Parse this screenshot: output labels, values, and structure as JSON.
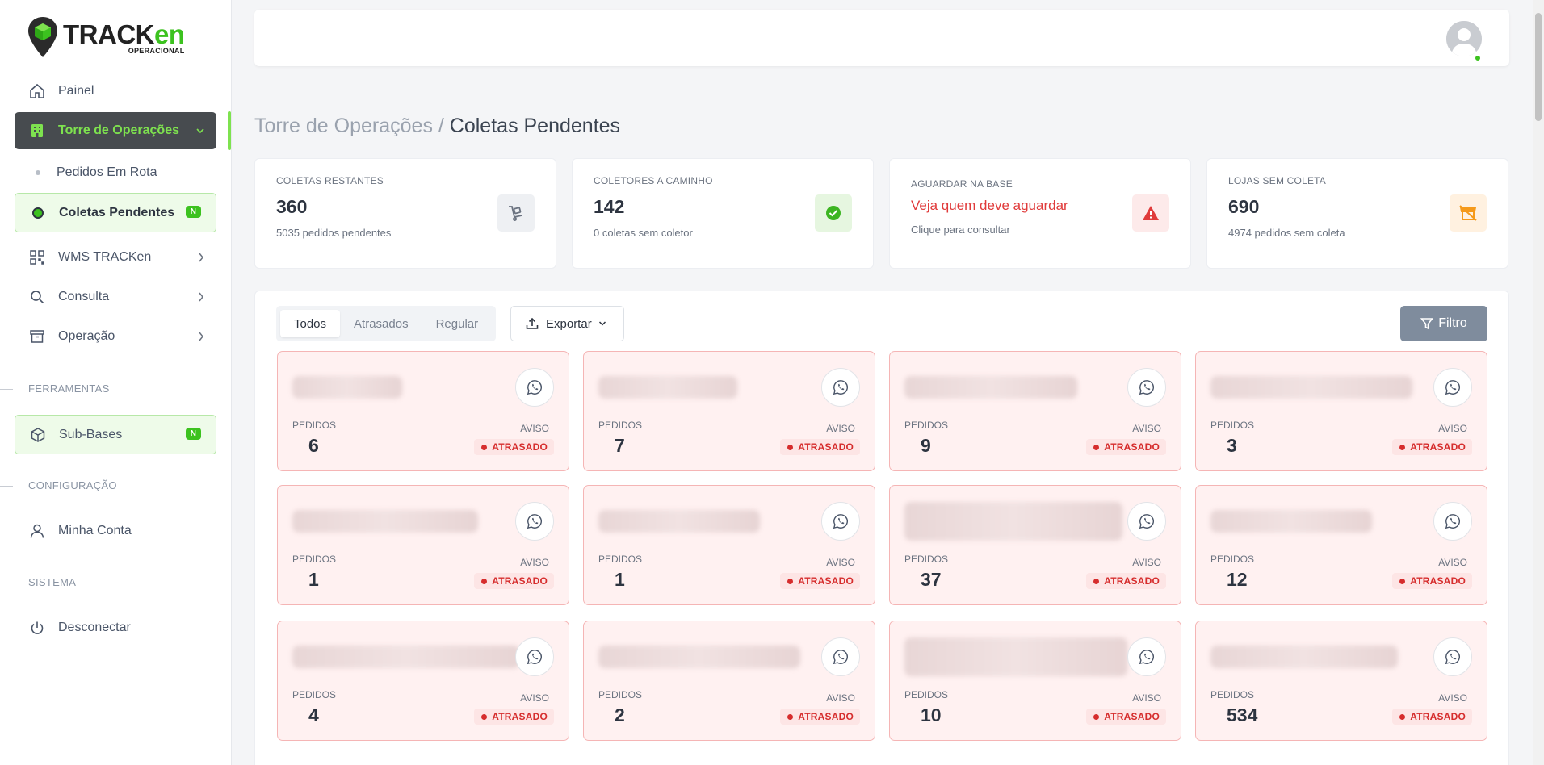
{
  "brand": {
    "name_main": "TRACK",
    "name_accent": "en",
    "sub": "OPERACIONAL",
    "accent_color": "#3cc21f"
  },
  "sidebar": {
    "painel": "Painel",
    "torre": "Torre de Operações",
    "pedidos_rota": "Pedidos Em Rota",
    "coletas": "Coletas Pendentes",
    "coletas_badge": "N",
    "wms": "WMS TRACKen",
    "consulta": "Consulta",
    "operacao": "Operação",
    "section_ferramentas": "FERRAMENTAS",
    "subbases": "Sub-Bases",
    "subbases_badge": "N",
    "section_configuracao": "CONFIGURAÇÃO",
    "minha_conta": "Minha Conta",
    "section_sistema": "SISTEMA",
    "desconectar": "Desconectar"
  },
  "breadcrumb": {
    "parent": "Torre de Operações",
    "separator": " / ",
    "current": "Coletas Pendentes"
  },
  "stats": [
    {
      "label": "COLETAS RESTANTES",
      "value": "360",
      "sub": "5035 pedidos pendentes",
      "icon": "cart-icon"
    },
    {
      "label": "COLETORES A CAMINHO",
      "value": "142",
      "sub": "0 coletas sem coletor",
      "icon": "check-circle-icon"
    },
    {
      "label": "AGUARDAR NA BASE",
      "value": "Veja quem deve aguardar",
      "sub": "Clique para consultar",
      "icon": "warning-icon"
    },
    {
      "label": "LOJAS SEM COLETA",
      "value": "690",
      "sub": "4974 pedidos sem coleta",
      "icon": "store-off-icon"
    }
  ],
  "toolbar": {
    "tabs": [
      "Todos",
      "Atrasados",
      "Regular"
    ],
    "export_label": "Exportar",
    "filter_label": "Filtro"
  },
  "cards": [
    {
      "pedidos_label": "PEDIDOS",
      "pedidos": "6",
      "aviso_label": "AVISO",
      "status": "ATRASADO"
    },
    {
      "pedidos_label": "PEDIDOS",
      "pedidos": "7",
      "aviso_label": "AVISO",
      "status": "ATRASADO"
    },
    {
      "pedidos_label": "PEDIDOS",
      "pedidos": "9",
      "aviso_label": "AVISO",
      "status": "ATRASADO"
    },
    {
      "pedidos_label": "PEDIDOS",
      "pedidos": "3",
      "aviso_label": "AVISO",
      "status": "ATRASADO"
    },
    {
      "pedidos_label": "PEDIDOS",
      "pedidos": "1",
      "aviso_label": "AVISO",
      "status": "ATRASADO"
    },
    {
      "pedidos_label": "PEDIDOS",
      "pedidos": "1",
      "aviso_label": "AVISO",
      "status": "ATRASADO"
    },
    {
      "pedidos_label": "PEDIDOS",
      "pedidos": "37",
      "aviso_label": "AVISO",
      "status": "ATRASADO"
    },
    {
      "pedidos_label": "PEDIDOS",
      "pedidos": "12",
      "aviso_label": "AVISO",
      "status": "ATRASADO"
    },
    {
      "pedidos_label": "PEDIDOS",
      "pedidos": "4",
      "aviso_label": "AVISO",
      "status": "ATRASADO"
    },
    {
      "pedidos_label": "PEDIDOS",
      "pedidos": "2",
      "aviso_label": "AVISO",
      "status": "ATRASADO"
    },
    {
      "pedidos_label": "PEDIDOS",
      "pedidos": "10",
      "aviso_label": "AVISO",
      "status": "ATRASADO"
    },
    {
      "pedidos_label": "PEDIDOS",
      "pedidos": "534",
      "aviso_label": "AVISO",
      "status": "ATRASADO"
    }
  ]
}
